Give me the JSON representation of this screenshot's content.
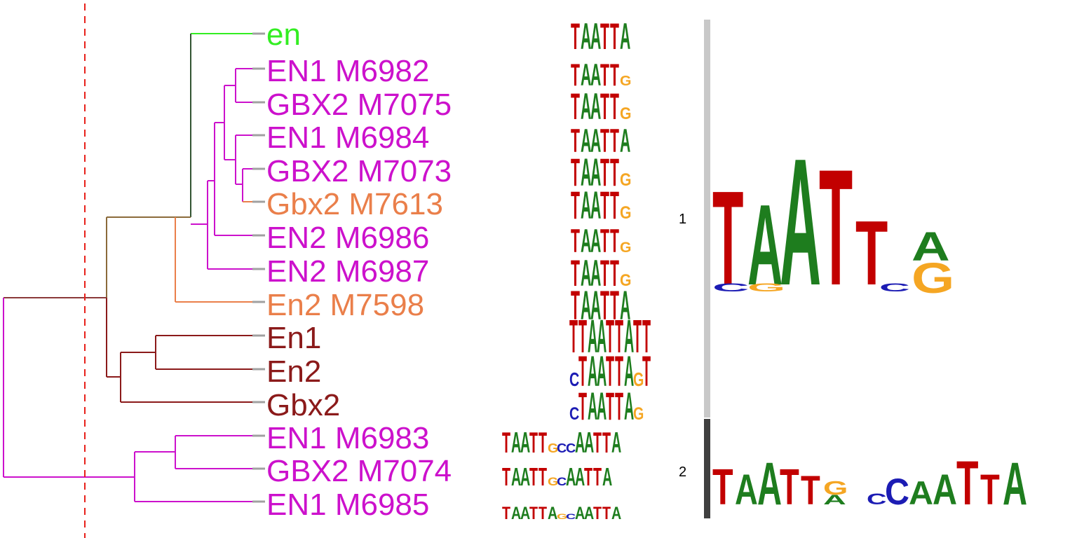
{
  "colors": {
    "A": "#1e7d1e",
    "C": "#1c1cb4",
    "G": "#f5a623",
    "T": "#c20000",
    "cutoff": "#e8201a",
    "cluster_bar_1": "#c8c8c8",
    "cluster_bar_2": "#404040",
    "leaf_stub": "#a0a0a0"
  },
  "tree": {
    "leaves": [
      {
        "label": "en",
        "color": "#33ee22",
        "logo": "TAATTA",
        "logo_offset": 0
      },
      {
        "label": "EN1 M6982",
        "color": "#cc11cc",
        "logo": "TAATTG",
        "logo_offset": 0
      },
      {
        "label": "GBX2 M7075",
        "color": "#cc11cc",
        "logo": "TAATTG",
        "logo_offset": 0
      },
      {
        "label": "EN1 M6984",
        "color": "#cc11cc",
        "logo": "TAATTA",
        "logo_offset": 0
      },
      {
        "label": "GBX2 M7073",
        "color": "#cc11cc",
        "logo": "TAATTG",
        "logo_offset": 0
      },
      {
        "label": "Gbx2 M7613",
        "color": "#ea7f4a",
        "logo": "TAATTG",
        "logo_offset": 0
      },
      {
        "label": "EN2 M6986",
        "color": "#cc11cc",
        "logo": "TAATTG",
        "logo_offset": 0
      },
      {
        "label": "EN2 M6987",
        "color": "#cc11cc",
        "logo": "TAATTG",
        "logo_offset": 0
      },
      {
        "label": "En2 M7598",
        "color": "#ea7f4a",
        "logo": "TAATTA",
        "logo_offset": 0
      },
      {
        "label": "En1",
        "color": "#8b1a1a",
        "logo": "TTAATTATT",
        "logo_offset": 0
      },
      {
        "label": "En2",
        "color": "#8b1a1a",
        "logo": "CTAATTAGT",
        "logo_offset": 0
      },
      {
        "label": "Gbx2",
        "color": "#8b1a1a",
        "logo": "CTAATTAG",
        "logo_offset": 0
      },
      {
        "label": "EN1 M6983",
        "color": "#cc11cc",
        "logo": "TAATTGCCAATTA",
        "logo_offset": 0
      },
      {
        "label": "GBX2 M7074",
        "color": "#cc11cc",
        "logo": "TAATTGCAATTA",
        "logo_offset": 0
      },
      {
        "label": "EN1 M6985",
        "color": "#cc11cc",
        "logo": "TAATTAGCAATTA",
        "logo_offset": 0
      }
    ]
  },
  "clusters": [
    {
      "id": "1",
      "consensus": [
        "T",
        "A",
        "A",
        "T",
        "T",
        "A/G"
      ]
    },
    {
      "id": "2",
      "consensus": [
        "T",
        "A",
        "A",
        "T",
        "T",
        "G",
        "C",
        "C",
        "A",
        "A",
        "T",
        "T",
        "A"
      ]
    }
  ]
}
